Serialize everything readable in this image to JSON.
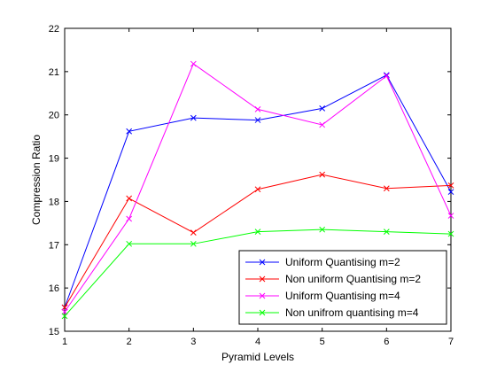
{
  "chart_data": {
    "type": "line",
    "title": "",
    "xlabel": "Pyramid Levels",
    "ylabel": "Compression Ratio",
    "xlim": [
      1,
      7
    ],
    "ylim": [
      15,
      22
    ],
    "x_ticks": [
      "1",
      "2",
      "3",
      "4",
      "5",
      "6",
      "7"
    ],
    "y_ticks": [
      "15",
      "16",
      "17",
      "18",
      "19",
      "20",
      "21",
      "22"
    ],
    "grid": false,
    "legend_position": "bottom-right",
    "x": [
      1,
      2,
      3,
      4,
      5,
      6,
      7
    ],
    "series": [
      {
        "name": "Uniform Quantising m=2",
        "color": "#0000ff",
        "marker": "x",
        "values": [
          15.55,
          19.62,
          19.93,
          19.88,
          20.15,
          20.92,
          18.22
        ]
      },
      {
        "name": "Non uniform Quantising m=2",
        "color": "#ff0000",
        "marker": "x",
        "values": [
          15.55,
          18.07,
          17.28,
          18.28,
          18.62,
          18.3,
          18.37
        ]
      },
      {
        "name": "Uniform Quantising m=4",
        "color": "#ff00ff",
        "marker": "x",
        "values": [
          15.45,
          17.6,
          21.18,
          20.13,
          19.77,
          20.9,
          17.67
        ]
      },
      {
        "name": "Non unifrom quantising m=4",
        "color": "#00ff00",
        "marker": "x",
        "values": [
          15.35,
          17.02,
          17.02,
          17.3,
          17.35,
          17.3,
          17.25
        ]
      }
    ]
  }
}
